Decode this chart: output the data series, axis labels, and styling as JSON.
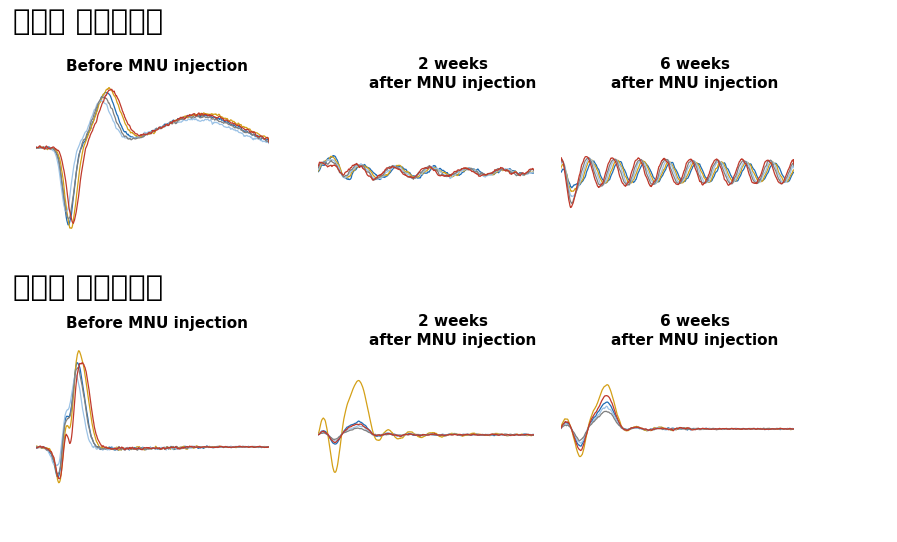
{
  "title_dark": "암순응 망막전위도",
  "title_light": "명순응 망막전위도",
  "col_labels": [
    [
      "Before MNU injection",
      ""
    ],
    [
      "2 weeks",
      "after MNU injection"
    ],
    [
      "6 weeks",
      "after MNU injection"
    ]
  ],
  "colors": [
    "#1f6db5",
    "#d4a017",
    "#9dc3e6",
    "#808080",
    "#c0392b"
  ],
  "background": "#ffffff",
  "n_traces": 5,
  "n_points": 400
}
